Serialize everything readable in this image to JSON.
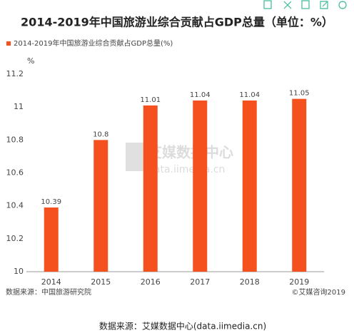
{
  "chart_data": {
    "type": "bar",
    "title": "2014-2019年中国旅游业综合贡献占GDP总量（单位：%）",
    "legend_label": "2014-2019年中国旅游业综合贡献占GDP总量(%)",
    "y_unit": "%",
    "categories": [
      "2014",
      "2015",
      "2016",
      "2017",
      "2018",
      "2019"
    ],
    "series": [
      {
        "name": "2014-2019年中国旅游业综合贡献占GDP总量(%)",
        "color": "#f4511e",
        "values": [
          10.39,
          10.8,
          11.01,
          11.04,
          11.04,
          11.05
        ]
      }
    ],
    "ylim": [
      10,
      11.2
    ],
    "yticks": [
      10,
      10.2,
      10.4,
      10.6,
      10.8,
      11,
      11.2
    ],
    "grid": false,
    "source_left": "数据来源：中国旅游研究院",
    "source_right": "©艾媒咨询2019",
    "watermark": [
      "艾媒数据中心",
      "data.iimedia.cn"
    ],
    "footer": "数据来源：艾媒数据中心(data.iimedia.cn)"
  }
}
